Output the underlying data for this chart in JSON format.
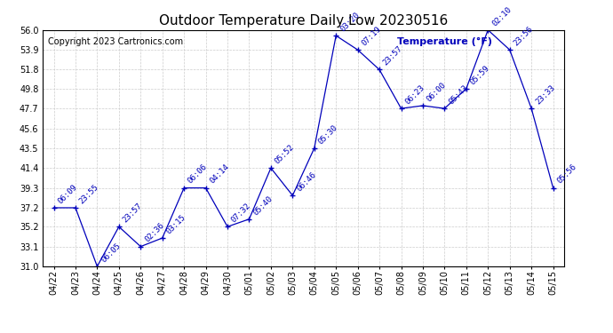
{
  "title": "Outdoor Temperature Daily Low 20230516",
  "copyright": "Copyright 2023 Cartronics.com",
  "legend_label": "Temperature (°F)",
  "ylim": [
    31.0,
    56.0
  ],
  "yticks": [
    31.0,
    33.1,
    35.2,
    37.2,
    39.3,
    41.4,
    43.5,
    45.6,
    47.7,
    49.8,
    51.8,
    53.9,
    56.0
  ],
  "background_color": "#ffffff",
  "line_color": "#0000bb",
  "grid_color": "#cccccc",
  "dates": [
    "04/22",
    "04/23",
    "04/24",
    "04/25",
    "04/26",
    "04/27",
    "04/28",
    "04/29",
    "04/30",
    "05/01",
    "05/02",
    "05/03",
    "05/04",
    "05/05",
    "05/06",
    "05/07",
    "05/08",
    "05/09",
    "05/10",
    "05/11",
    "05/12",
    "05/13",
    "05/14",
    "05/15"
  ],
  "values": [
    37.2,
    37.2,
    31.0,
    35.2,
    33.1,
    34.0,
    39.3,
    39.3,
    35.2,
    36.0,
    41.4,
    38.5,
    43.5,
    55.4,
    53.9,
    51.8,
    47.7,
    48.0,
    47.7,
    49.8,
    56.0,
    53.9,
    47.7,
    39.3
  ],
  "annotations": [
    "06:09",
    "23:55",
    "06:05",
    "23:57",
    "02:36",
    "03:15",
    "06:06",
    "04:14",
    "07:32",
    "05:40",
    "05:52",
    "06:46",
    "05:30",
    "03:20",
    "07:19",
    "23:57",
    "06:23",
    "06:00",
    "05:43",
    "05:59",
    "02:10",
    "23:56",
    "23:33",
    "05:56"
  ],
  "title_fontsize": 11,
  "tick_fontsize": 7,
  "annotation_fontsize": 6.5,
  "copyright_fontsize": 7,
  "legend_fontsize": 8
}
